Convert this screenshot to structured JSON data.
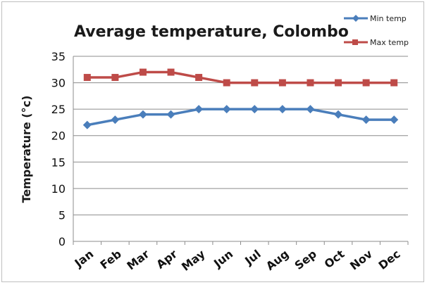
{
  "chart_data": {
    "type": "line",
    "title": "Average temperature, Colombo",
    "xlabel": "",
    "ylabel": "Temperature (°c)",
    "categories": [
      "Jan",
      "Feb",
      "Mar",
      "Apr",
      "May",
      "Jun",
      "Jul",
      "Aug",
      "Sep",
      "Oct",
      "Nov",
      "Dec"
    ],
    "yticks": [
      "0",
      "5",
      "10",
      "15",
      "20",
      "25",
      "30",
      "35"
    ],
    "ylim": [
      0,
      35
    ],
    "grid": "horizontal",
    "legend_position": "top-right",
    "series": [
      {
        "name": "Min temp",
        "color": "#4a7ebb",
        "marker": "diamond",
        "values": [
          22,
          23,
          24,
          24,
          25,
          25,
          25,
          25,
          25,
          24,
          23,
          23
        ]
      },
      {
        "name": "Max temp",
        "color": "#be4b48",
        "marker": "square",
        "values": [
          31,
          31,
          32,
          32,
          31,
          30,
          30,
          30,
          30,
          30,
          30,
          30
        ]
      }
    ]
  }
}
